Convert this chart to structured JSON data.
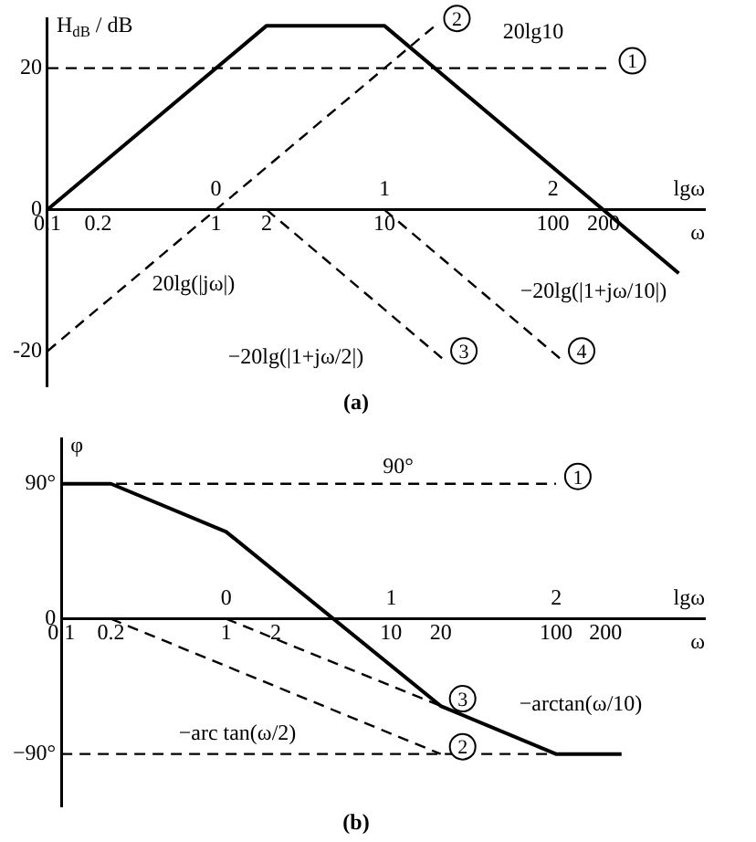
{
  "chart_data": [
    {
      "type": "line",
      "title": "(a)",
      "ylabel": "H$_{dB}$ / dB",
      "xlabel": "ω",
      "x2label": "lgω",
      "log": "x",
      "xlim": [
        0.1,
        800
      ],
      "ylim": [
        -25,
        27
      ],
      "xticks": [
        0.1,
        0.2,
        1,
        2,
        10,
        100,
        200
      ],
      "x2lim": [
        -1,
        2.9
      ],
      "x2ticks": [
        0,
        1,
        2
      ],
      "yticks": [
        -20,
        0,
        20
      ],
      "grid": false,
      "legend": false,
      "series": [
        {
          "color": "#000000",
          "line_style": "solid",
          "x": [
            0.1,
            2,
            10,
            560
          ],
          "values": [
            0,
            26,
            26,
            -9
          ]
        },
        {
          "name": "1",
          "color": "#000000",
          "line_style": "dashed",
          "x": [
            0.1,
            220
          ],
          "values": [
            20,
            20
          ]
        },
        {
          "name": "2",
          "color": "#000000",
          "line_style": "dashed",
          "x": [
            0.1,
            20
          ],
          "values": [
            -20,
            26
          ]
        },
        {
          "name": "3",
          "color": "#000000",
          "line_style": "dashed",
          "x": [
            2,
            22
          ],
          "values": [
            0,
            -21
          ]
        },
        {
          "name": "4",
          "color": "#000000",
          "line_style": "dashed",
          "x": [
            10,
            110
          ],
          "values": [
            0,
            -21
          ]
        }
      ],
      "annotations": [
        "20lg10",
        "20lg(|jω|)",
        "−20lg(|1+jω/2|)",
        "−20lg(|1+jω/10|)"
      ]
    },
    {
      "type": "line",
      "title": "(b)",
      "ylabel": "φ",
      "xlabel": "ω",
      "x2label": "lgω",
      "log": "x",
      "xlim": [
        0.1,
        800
      ],
      "ylim": [
        -125,
        120
      ],
      "xticks": [
        0.1,
        0.2,
        1,
        2,
        10,
        20,
        100,
        200
      ],
      "x2lim": [
        -1,
        2.9
      ],
      "x2ticks": [
        0,
        1,
        2
      ],
      "yticks": [
        {
          "value": -90,
          "label": "−90°"
        },
        0,
        {
          "value": 90,
          "label": "90°"
        }
      ],
      "grid": false,
      "legend": false,
      "series": [
        {
          "color": "#000000",
          "line_style": "solid",
          "x": [
            0.1,
            0.2,
            1,
            20,
            100,
            250
          ],
          "values": [
            90,
            90,
            58,
            -58,
            -90,
            -90
          ]
        },
        {
          "name": "1",
          "color": "#000000",
          "line_style": "dashed",
          "x": [
            0.1,
            100
          ],
          "values": [
            90,
            90
          ]
        },
        {
          "name": "2",
          "color": "#000000",
          "line_style": "dashed",
          "x": [
            0.2,
            20
          ],
          "values": [
            0,
            -90
          ]
        },
        {
          "name": "3",
          "color": "#000000",
          "line_style": "dashed",
          "x": [
            1,
            20
          ],
          "values": [
            0,
            -58
          ]
        },
        {
          "color": "#000000",
          "line_style": "dashed",
          "x": [
            0.1,
            100
          ],
          "values": [
            -90,
            -90
          ]
        }
      ],
      "annotations": [
        "90°",
        "−arctan(ω/10)",
        "−arc tan(ω/2)"
      ]
    }
  ]
}
